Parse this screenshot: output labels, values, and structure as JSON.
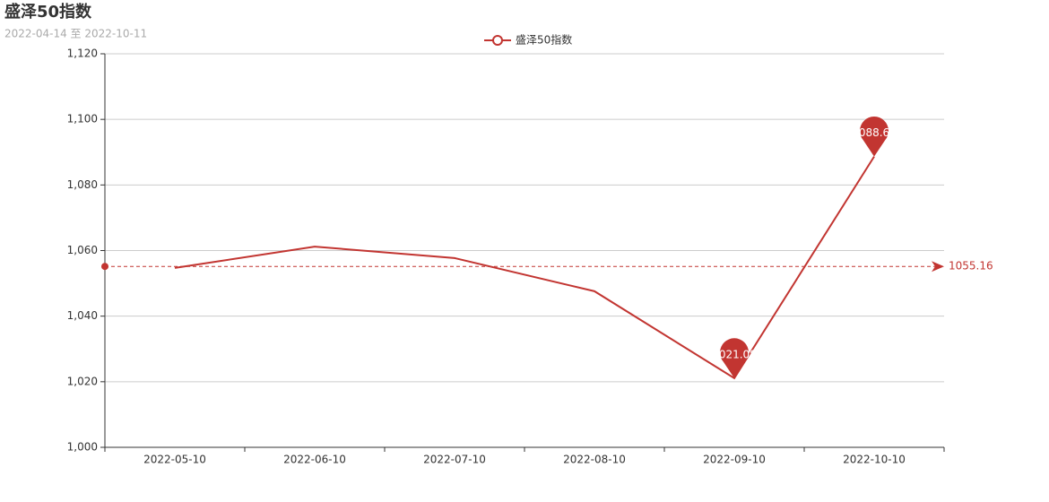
{
  "chart_data": {
    "type": "line",
    "title": "盛泽50指数",
    "subtitle": "2022-04-14 至 2022-10-11",
    "categories": [
      "2022-05-10",
      "2022-06-10",
      "2022-07-10",
      "2022-08-10",
      "2022-09-10",
      "2022-10-10"
    ],
    "series": [
      {
        "name": "盛泽50指数",
        "color": "#c23531",
        "values": [
          1054.7,
          1061.2,
          1057.7,
          1047.6,
          1021.08,
          1088.67
        ]
      }
    ],
    "ylim": [
      1000,
      1120
    ],
    "yticks": [
      {
        "value": 1000,
        "label": "1,000"
      },
      {
        "value": 1020,
        "label": "1,020"
      },
      {
        "value": 1040,
        "label": "1,040"
      },
      {
        "value": 1060,
        "label": "1,060"
      },
      {
        "value": 1080,
        "label": "1,080"
      },
      {
        "value": 1100,
        "label": "1,100"
      },
      {
        "value": 1120,
        "label": "1,120"
      }
    ],
    "grid": true,
    "legend": "top",
    "mark_points": [
      "max",
      "min"
    ],
    "average_line": 1055.16
  }
}
